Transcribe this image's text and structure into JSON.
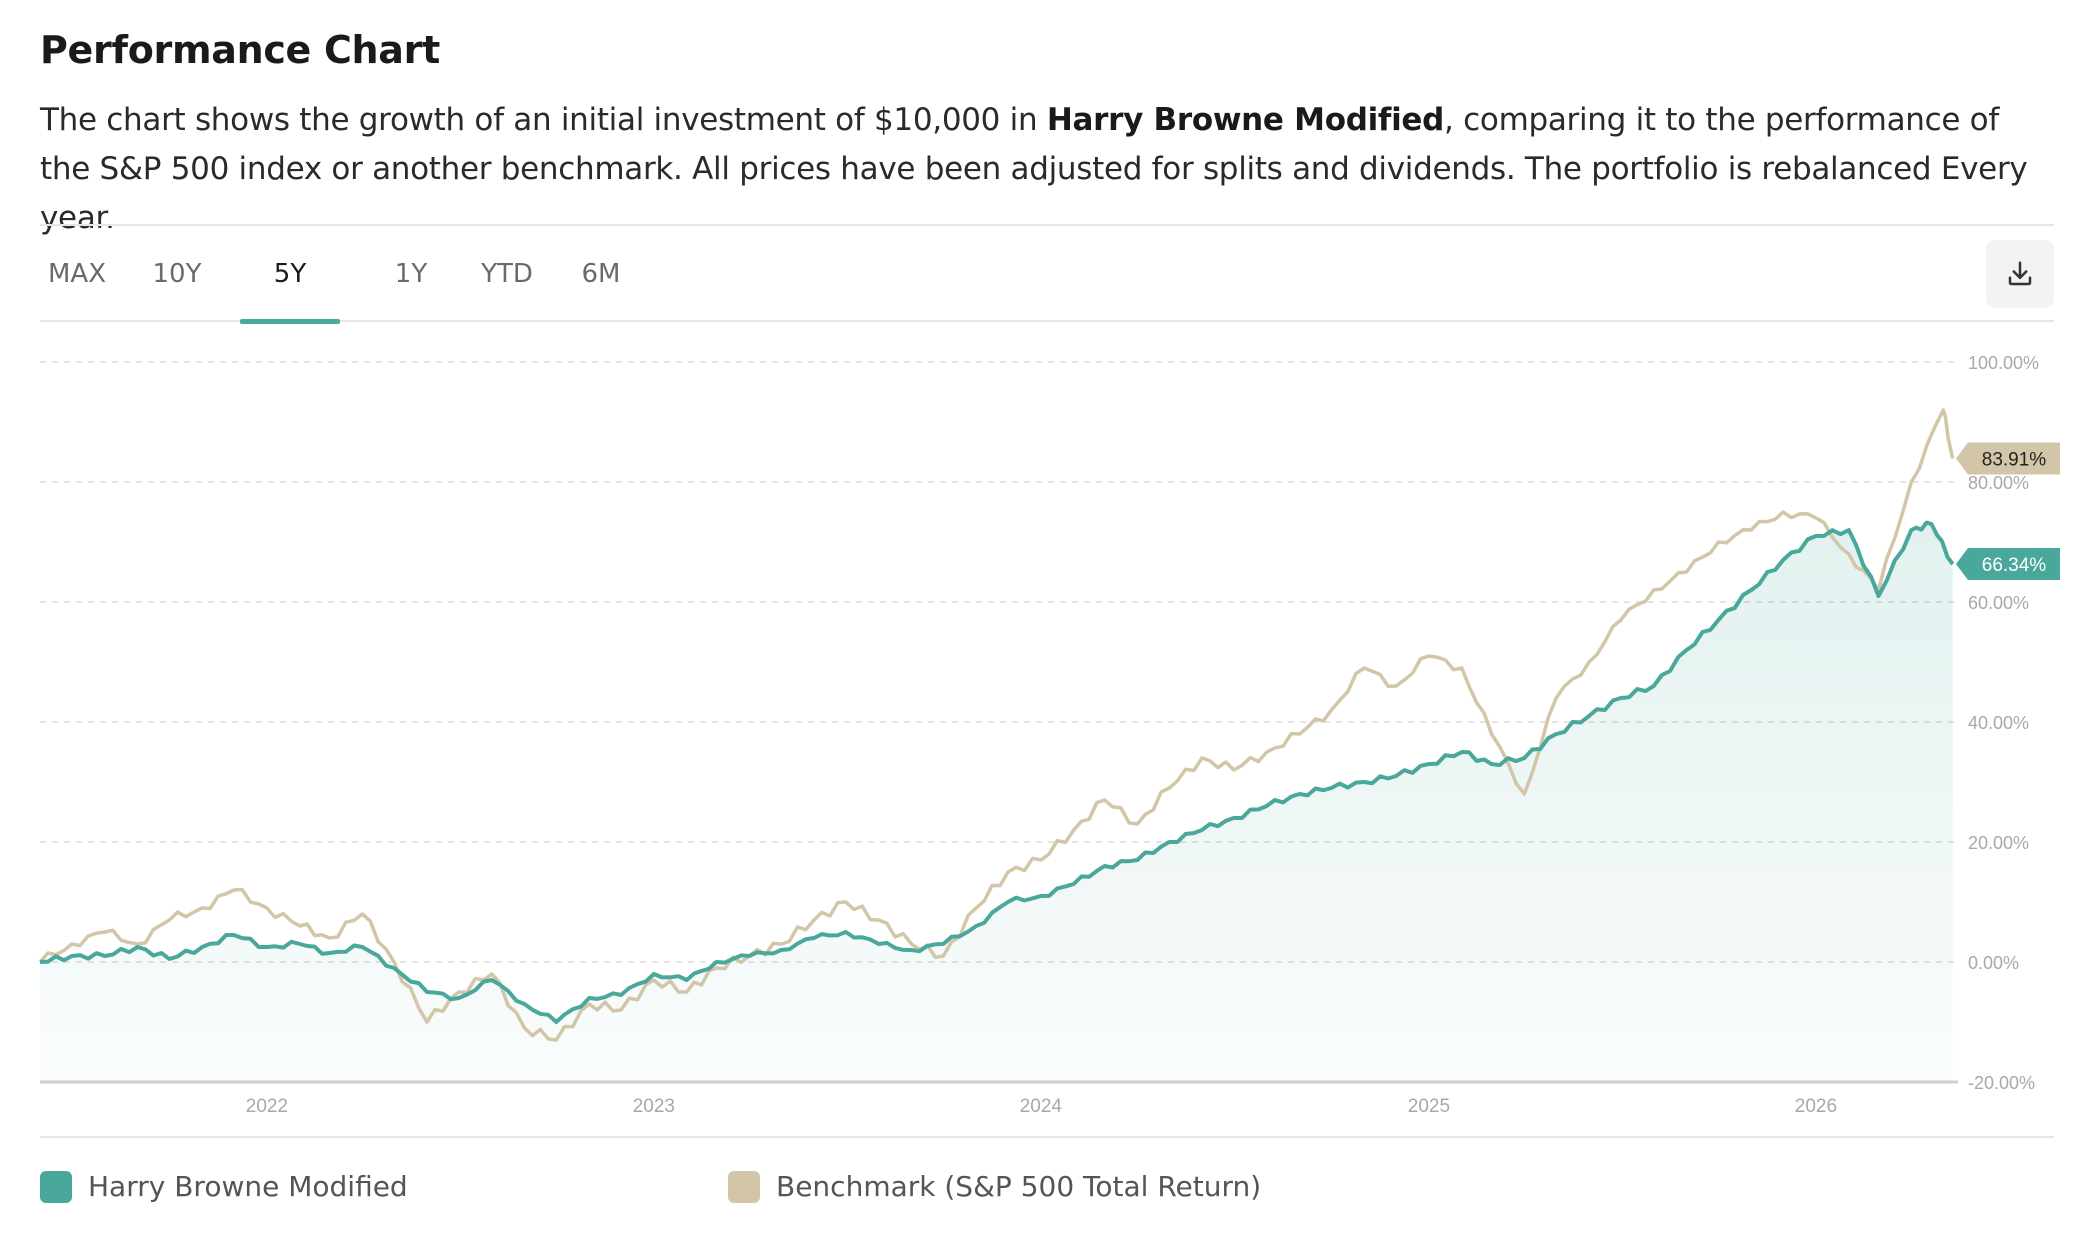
{
  "heading": "Performance Chart",
  "description": {
    "part1": "The chart shows the growth of an initial investment of $10,000 in ",
    "portfolio_name": "Harry Browne Modified",
    "part2": ", comparing it to the performance of the S&P 500 index or another benchmark. All prices have been adjusted for splits and dividends. The portfolio is rebalanced Every year."
  },
  "tabs": [
    {
      "label": "MAX"
    },
    {
      "label": "10Y"
    },
    {
      "label": "5Y"
    },
    {
      "label": "1Y"
    },
    {
      "label": "YTD"
    },
    {
      "label": "6M"
    }
  ],
  "active_tab": "5Y",
  "download_icon": "download-icon",
  "colors": {
    "portfolio": "#4aa79c",
    "benchmark": "#d3c6a8",
    "accent": "#4aa79c",
    "grid": "#dcdcdc"
  },
  "legend": [
    {
      "label": "Harry Browne Modified",
      "color": "#4aa79c"
    },
    {
      "label": "Benchmark (S&P 500 Total Return)",
      "color": "#d3c6a8"
    }
  ],
  "chart_data": {
    "type": "line",
    "title": "",
    "xlabel": "",
    "ylabel": "",
    "y_unit": "%",
    "ylim": [
      -20,
      100
    ],
    "y_ticks": [
      "100.00%",
      "80.00%",
      "60.00%",
      "40.00%",
      "20.00%",
      "0.00%",
      "-20.00%"
    ],
    "xlim": [
      "2021-06-01",
      "2026-05-15"
    ],
    "x_ticks": [
      "2022",
      "2023",
      "2024",
      "2025",
      "2026"
    ],
    "grid": "horizontal dashed",
    "legend_position": "bottom",
    "area_fill_series": "Harry Browne Modified",
    "end_labels": [
      "83.91%",
      "66.34%"
    ],
    "series": [
      {
        "name": "Harry Browne Modified",
        "color": "#4aa79c",
        "points": [
          [
            "2021-06-01",
            0
          ],
          [
            "2021-07-01",
            1
          ],
          [
            "2021-08-01",
            1
          ],
          [
            "2021-09-01",
            2.5
          ],
          [
            "2021-10-01",
            0.5
          ],
          [
            "2021-11-01",
            2.5
          ],
          [
            "2021-12-01",
            4.5
          ],
          [
            "2022-01-01",
            2.5
          ],
          [
            "2022-02-01",
            3
          ],
          [
            "2022-03-01",
            1.5
          ],
          [
            "2022-04-01",
            2.5
          ],
          [
            "2022-05-01",
            -1
          ],
          [
            "2022-06-01",
            -5
          ],
          [
            "2022-07-01",
            -6
          ],
          [
            "2022-08-01",
            -3
          ],
          [
            "2022-09-01",
            -7
          ],
          [
            "2022-10-01",
            -10
          ],
          [
            "2022-11-01",
            -6
          ],
          [
            "2022-12-01",
            -5.5
          ],
          [
            "2023-01-01",
            -2
          ],
          [
            "2023-02-01",
            -3
          ],
          [
            "2023-03-01",
            0
          ],
          [
            "2023-04-01",
            1
          ],
          [
            "2023-05-01",
            2
          ],
          [
            "2023-06-01",
            4
          ],
          [
            "2023-07-01",
            5
          ],
          [
            "2023-08-01",
            3
          ],
          [
            "2023-09-01",
            2
          ],
          [
            "2023-10-01",
            3
          ],
          [
            "2023-11-01",
            6
          ],
          [
            "2023-12-01",
            10
          ],
          [
            "2024-01-01",
            11
          ],
          [
            "2024-02-01",
            13
          ],
          [
            "2024-03-01",
            16
          ],
          [
            "2024-04-01",
            17
          ],
          [
            "2024-05-01",
            20
          ],
          [
            "2024-06-01",
            22
          ],
          [
            "2024-07-01",
            24
          ],
          [
            "2024-08-01",
            26
          ],
          [
            "2024-09-01",
            28
          ],
          [
            "2024-10-01",
            29
          ],
          [
            "2024-11-01",
            30
          ],
          [
            "2024-12-01",
            31
          ],
          [
            "2025-01-01",
            33
          ],
          [
            "2025-02-01",
            35
          ],
          [
            "2025-03-01",
            33
          ],
          [
            "2025-04-01",
            34
          ],
          [
            "2025-05-01",
            38
          ],
          [
            "2025-06-01",
            41
          ],
          [
            "2025-07-01",
            44
          ],
          [
            "2025-08-01",
            46
          ],
          [
            "2025-09-01",
            52
          ],
          [
            "2025-10-01",
            57
          ],
          [
            "2025-11-01",
            62
          ],
          [
            "2025-12-01",
            67
          ],
          [
            "2026-01-01",
            71
          ],
          [
            "2026-02-01",
            72
          ],
          [
            "2026-03-01",
            61
          ],
          [
            "2026-04-01",
            72
          ],
          [
            "2026-04-20",
            73
          ],
          [
            "2026-05-10",
            66.34
          ]
        ]
      },
      {
        "name": "Benchmark (S&P 500 Total Return)",
        "color": "#d3c6a8",
        "points": [
          [
            "2021-06-01",
            0
          ],
          [
            "2021-07-01",
            3
          ],
          [
            "2021-08-01",
            5
          ],
          [
            "2021-09-01",
            3
          ],
          [
            "2021-10-01",
            7
          ],
          [
            "2021-11-01",
            9
          ],
          [
            "2021-12-01",
            12
          ],
          [
            "2022-01-01",
            9
          ],
          [
            "2022-02-01",
            6
          ],
          [
            "2022-03-01",
            4
          ],
          [
            "2022-04-01",
            8
          ],
          [
            "2022-05-01",
            0
          ],
          [
            "2022-06-01",
            -10
          ],
          [
            "2022-07-01",
            -5
          ],
          [
            "2022-08-01",
            -2
          ],
          [
            "2022-09-01",
            -11
          ],
          [
            "2022-10-01",
            -13
          ],
          [
            "2022-11-01",
            -7
          ],
          [
            "2022-12-01",
            -8
          ],
          [
            "2023-01-01",
            -3
          ],
          [
            "2023-02-01",
            -5
          ],
          [
            "2023-03-01",
            -1
          ],
          [
            "2023-04-01",
            1
          ],
          [
            "2023-05-01",
            3
          ],
          [
            "2023-06-01",
            7
          ],
          [
            "2023-07-01",
            10
          ],
          [
            "2023-08-01",
            7
          ],
          [
            "2023-09-01",
            3
          ],
          [
            "2023-10-01",
            1
          ],
          [
            "2023-11-01",
            9
          ],
          [
            "2023-12-01",
            15
          ],
          [
            "2024-01-01",
            17
          ],
          [
            "2024-02-01",
            22
          ],
          [
            "2024-03-01",
            27
          ],
          [
            "2024-04-01",
            23
          ],
          [
            "2024-05-01",
            29
          ],
          [
            "2024-06-01",
            34
          ],
          [
            "2024-07-01",
            32
          ],
          [
            "2024-08-01",
            35
          ],
          [
            "2024-09-01",
            38
          ],
          [
            "2024-10-01",
            42
          ],
          [
            "2024-11-01",
            49
          ],
          [
            "2024-12-01",
            46
          ],
          [
            "2025-01-01",
            51
          ],
          [
            "2025-02-01",
            49
          ],
          [
            "2025-03-01",
            38
          ],
          [
            "2025-04-01",
            28
          ],
          [
            "2025-05-01",
            44
          ],
          [
            "2025-06-01",
            50
          ],
          [
            "2025-07-01",
            57
          ],
          [
            "2025-08-01",
            62
          ],
          [
            "2025-09-01",
            65
          ],
          [
            "2025-10-01",
            70
          ],
          [
            "2025-11-01",
            72
          ],
          [
            "2025-12-01",
            75
          ],
          [
            "2026-01-01",
            74
          ],
          [
            "2026-02-01",
            68
          ],
          [
            "2026-03-01",
            62
          ],
          [
            "2026-04-01",
            80
          ],
          [
            "2026-05-01",
            92
          ],
          [
            "2026-05-10",
            83.91
          ]
        ]
      }
    ]
  }
}
